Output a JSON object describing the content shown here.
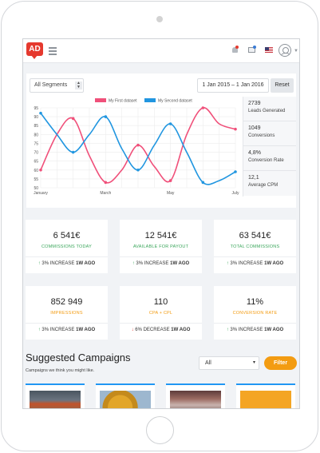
{
  "header": {
    "logo_text": "AD"
  },
  "toolbar": {
    "segment_select": "All Segments",
    "date_range": "1 Jan 2015 – 1 Jan 2016",
    "reset_label": "Reset"
  },
  "side_stats": [
    {
      "value": "2739",
      "label": "Leads Generated"
    },
    {
      "value": "1049",
      "label": "Conversions"
    },
    {
      "value": "4,8%",
      "label": "Conversion Rate"
    },
    {
      "value": "12,1",
      "label": "Average CPM"
    }
  ],
  "chart_data": {
    "type": "line",
    "y_ticks": [
      "95",
      "90",
      "85",
      "80",
      "75",
      "70",
      "65",
      "60",
      "55",
      "50"
    ],
    "ylim": [
      50,
      95
    ],
    "x": [
      0,
      1,
      2,
      3,
      4,
      5,
      6,
      7,
      8,
      9,
      10,
      11,
      12
    ],
    "x_tick_labels": [
      {
        "x": 0,
        "label": "January"
      },
      {
        "x": 4,
        "label": "March"
      },
      {
        "x": 8,
        "label": "May"
      },
      {
        "x": 12,
        "label": "July"
      }
    ],
    "series": [
      {
        "name": "My First dataset",
        "color": "#f0507a",
        "values": [
          60,
          80,
          89,
          68,
          53,
          60,
          74,
          62,
          54,
          80,
          95,
          86,
          83
        ]
      },
      {
        "name": "My Second dataset",
        "color": "#2196e0",
        "values": [
          92,
          80,
          70,
          80,
          90,
          72,
          60,
          74,
          86,
          70,
          53,
          54,
          59
        ]
      }
    ]
  },
  "kpis": [
    {
      "value": "6 541€",
      "label": "COMMISSIONS TODAY",
      "label_color": "#3aa65b",
      "trend": "up",
      "trend_text": "3% INCREASE",
      "trend_period": "1W AGO"
    },
    {
      "value": "12 541€",
      "label": "AVAILABLE FOR PAYOUT",
      "label_color": "#3aa65b",
      "trend": "up",
      "trend_text": "3% INCREASE",
      "trend_period": "1W AGO"
    },
    {
      "value": "63 541€",
      "label": "TOTAL COMMISSIONS",
      "label_color": "#3aa65b",
      "trend": "up",
      "trend_text": "3% INCREASE",
      "trend_period": "1W AGO"
    },
    {
      "value": "852 949",
      "label": "IMPRESSIONS",
      "label_color": "#f39c12",
      "trend": "up",
      "trend_text": "3% INCREASE",
      "trend_period": "1W AGO"
    },
    {
      "value": "110",
      "label": "CPA + CPL",
      "label_color": "#f39c12",
      "trend": "down",
      "trend_text": "6% DECREASE",
      "trend_period": "1W AGO"
    },
    {
      "value": "11%",
      "label": "CONVERSION RATE",
      "label_color": "#f39c12",
      "trend": "up",
      "trend_text": "3% INCREASE",
      "trend_period": "1W AGO"
    }
  ],
  "suggested": {
    "title": "Suggested Campaigns",
    "subtitle": "Campaigns we think you might like.",
    "filter_value": "All",
    "filter_button": "Filter"
  },
  "colors": {
    "accent": "#f39c12",
    "brand": "#e5392e",
    "campaign_border": "#2196f3"
  }
}
